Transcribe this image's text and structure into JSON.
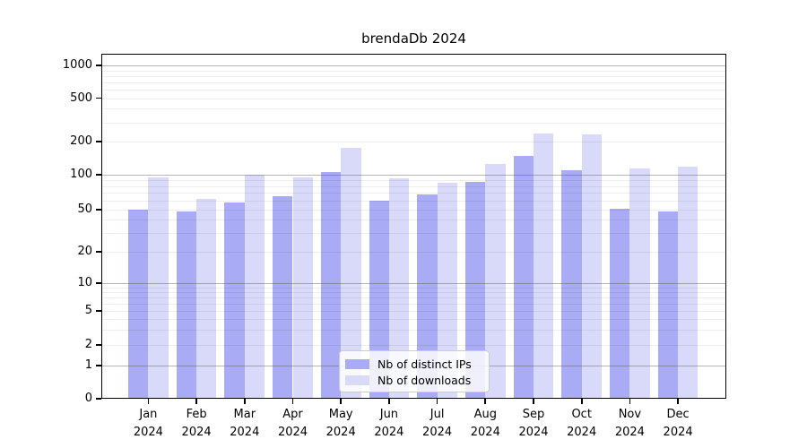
{
  "title": "brendaDb 2024",
  "chart_data": {
    "type": "bar",
    "title": "brendaDb 2024",
    "categories": [
      "Jan 2024",
      "Feb 2024",
      "Mar 2024",
      "Apr 2024",
      "May 2024",
      "Jun 2024",
      "Jul 2024",
      "Aug 2024",
      "Sep 2024",
      "Oct 2024",
      "Nov 2024",
      "Dec 2024"
    ],
    "series": [
      {
        "name": "Nb of distinct IPs",
        "color": "#a9abf4",
        "values": [
          50,
          48,
          58,
          65,
          106,
          60,
          68,
          87,
          150,
          110,
          51,
          48
        ]
      },
      {
        "name": "Nb of downloads",
        "color": "#d9daf9",
        "values": [
          95,
          62,
          100,
          95,
          177,
          93,
          86,
          127,
          238,
          233,
          115,
          118
        ]
      }
    ],
    "xlabel": "",
    "ylabel": "",
    "y_ticks": [
      0,
      1,
      2,
      5,
      10,
      20,
      50,
      100,
      200,
      500,
      1000
    ],
    "y_major_gridlines": [
      1,
      10,
      100,
      1000
    ],
    "y_scale": "log-like (compressed near zero)",
    "ylim": [
      0,
      1400
    ],
    "grid": "horizontal, major and minor",
    "legend_position": "bottom-center inside plot"
  }
}
